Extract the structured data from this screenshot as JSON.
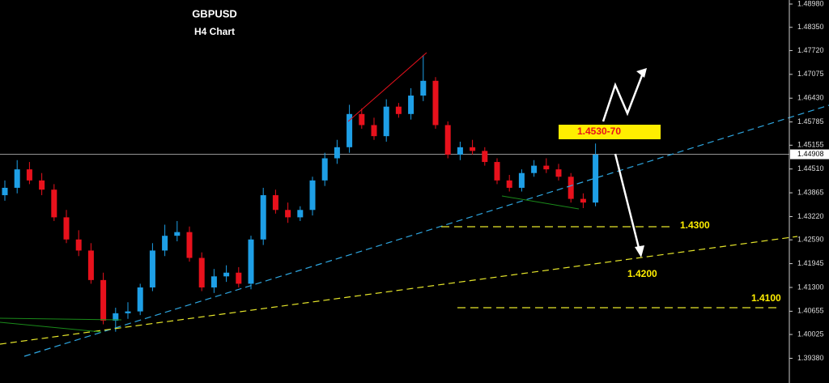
{
  "chart_data": {
    "type": "candlestick",
    "title": "GBPUSD",
    "subtitle": "H4 Chart",
    "open": [
      1.438,
      1.44,
      1.445,
      1.442,
      1.4395,
      1.432,
      1.426,
      1.423,
      1.415,
      1.404,
      1.406,
      1.4065,
      1.413,
      1.423,
      1.427,
      1.428,
      1.421,
      1.413,
      1.416,
      1.417,
      1.414,
      1.426,
      1.438,
      1.434,
      1.432,
      1.434,
      1.442,
      1.448,
      1.451,
      1.46,
      1.457,
      1.454,
      1.462,
      1.46,
      1.465,
      1.469,
      1.457,
      1.449,
      1.451,
      1.45,
      1.447,
      1.442,
      1.44,
      1.444,
      1.446,
      1.445,
      1.443,
      1.437,
      1.436
    ],
    "high": [
      1.442,
      1.4475,
      1.447,
      1.444,
      1.441,
      1.434,
      1.4285,
      1.425,
      1.417,
      1.4075,
      1.409,
      1.414,
      1.425,
      1.43,
      1.431,
      1.4295,
      1.4225,
      1.418,
      1.419,
      1.4185,
      1.427,
      1.44,
      1.4395,
      1.436,
      1.435,
      1.443,
      1.4495,
      1.453,
      1.4625,
      1.4615,
      1.459,
      1.464,
      1.463,
      1.467,
      1.476,
      1.47,
      1.458,
      1.4525,
      1.453,
      1.451,
      1.448,
      1.4435,
      1.445,
      1.4475,
      1.448,
      1.4465,
      1.444,
      1.4385,
      1.452
    ],
    "low": [
      1.4365,
      1.4385,
      1.441,
      1.438,
      1.431,
      1.425,
      1.4215,
      1.414,
      1.403,
      1.401,
      1.4045,
      1.4055,
      1.412,
      1.4215,
      1.4255,
      1.42,
      1.412,
      1.4115,
      1.4145,
      1.413,
      1.4125,
      1.4245,
      1.433,
      1.4305,
      1.431,
      1.4325,
      1.4405,
      1.4465,
      1.4495,
      1.456,
      1.453,
      1.4525,
      1.459,
      1.4585,
      1.4635,
      1.456,
      1.448,
      1.4475,
      1.449,
      1.446,
      1.441,
      1.439,
      1.439,
      1.443,
      1.444,
      1.442,
      1.436,
      1.4345,
      1.435
    ],
    "close": [
      1.44,
      1.445,
      1.442,
      1.4395,
      1.432,
      1.426,
      1.423,
      1.415,
      1.404,
      1.406,
      1.4065,
      1.413,
      1.423,
      1.427,
      1.428,
      1.421,
      1.413,
      1.416,
      1.417,
      1.414,
      1.426,
      1.438,
      1.434,
      1.432,
      1.434,
      1.442,
      1.448,
      1.451,
      1.46,
      1.457,
      1.454,
      1.462,
      1.46,
      1.465,
      1.469,
      1.457,
      1.449,
      1.451,
      1.45,
      1.447,
      1.442,
      1.44,
      1.444,
      1.446,
      1.445,
      1.443,
      1.437,
      1.436,
      1.449
    ],
    "up_color": "#1e9fe6",
    "down_color": "#e8111c",
    "ylim": [
      1.3871,
      1.4909
    ],
    "yticks": [
      {
        "value": 1.4898,
        "label": "1.48980"
      },
      {
        "value": 1.4835,
        "label": "1.48350"
      },
      {
        "value": 1.4772,
        "label": "1.47720"
      },
      {
        "value": 1.47075,
        "label": "1.47075"
      },
      {
        "value": 1.4643,
        "label": "1.46430"
      },
      {
        "value": 1.45785,
        "label": "1.45785"
      },
      {
        "value": 1.45155,
        "label": "1.45155"
      },
      {
        "value": 1.4451,
        "label": "1.44510"
      },
      {
        "value": 1.43865,
        "label": "1.43865"
      },
      {
        "value": 1.4322,
        "label": "1.43220"
      },
      {
        "value": 1.4259,
        "label": "1.42590"
      },
      {
        "value": 1.41945,
        "label": "1.41945"
      },
      {
        "value": 1.413,
        "label": "1.41300"
      },
      {
        "value": 1.40655,
        "label": "1.40655"
      },
      {
        "value": 1.40025,
        "label": "1.40025"
      },
      {
        "value": 1.3938,
        "label": "1.39380"
      }
    ],
    "current_price": {
      "value": 1.44908,
      "label": "1.44908"
    },
    "annotations": [
      "1.4530-70",
      "1.4300",
      "1.4200",
      "1.4100"
    ]
  }
}
